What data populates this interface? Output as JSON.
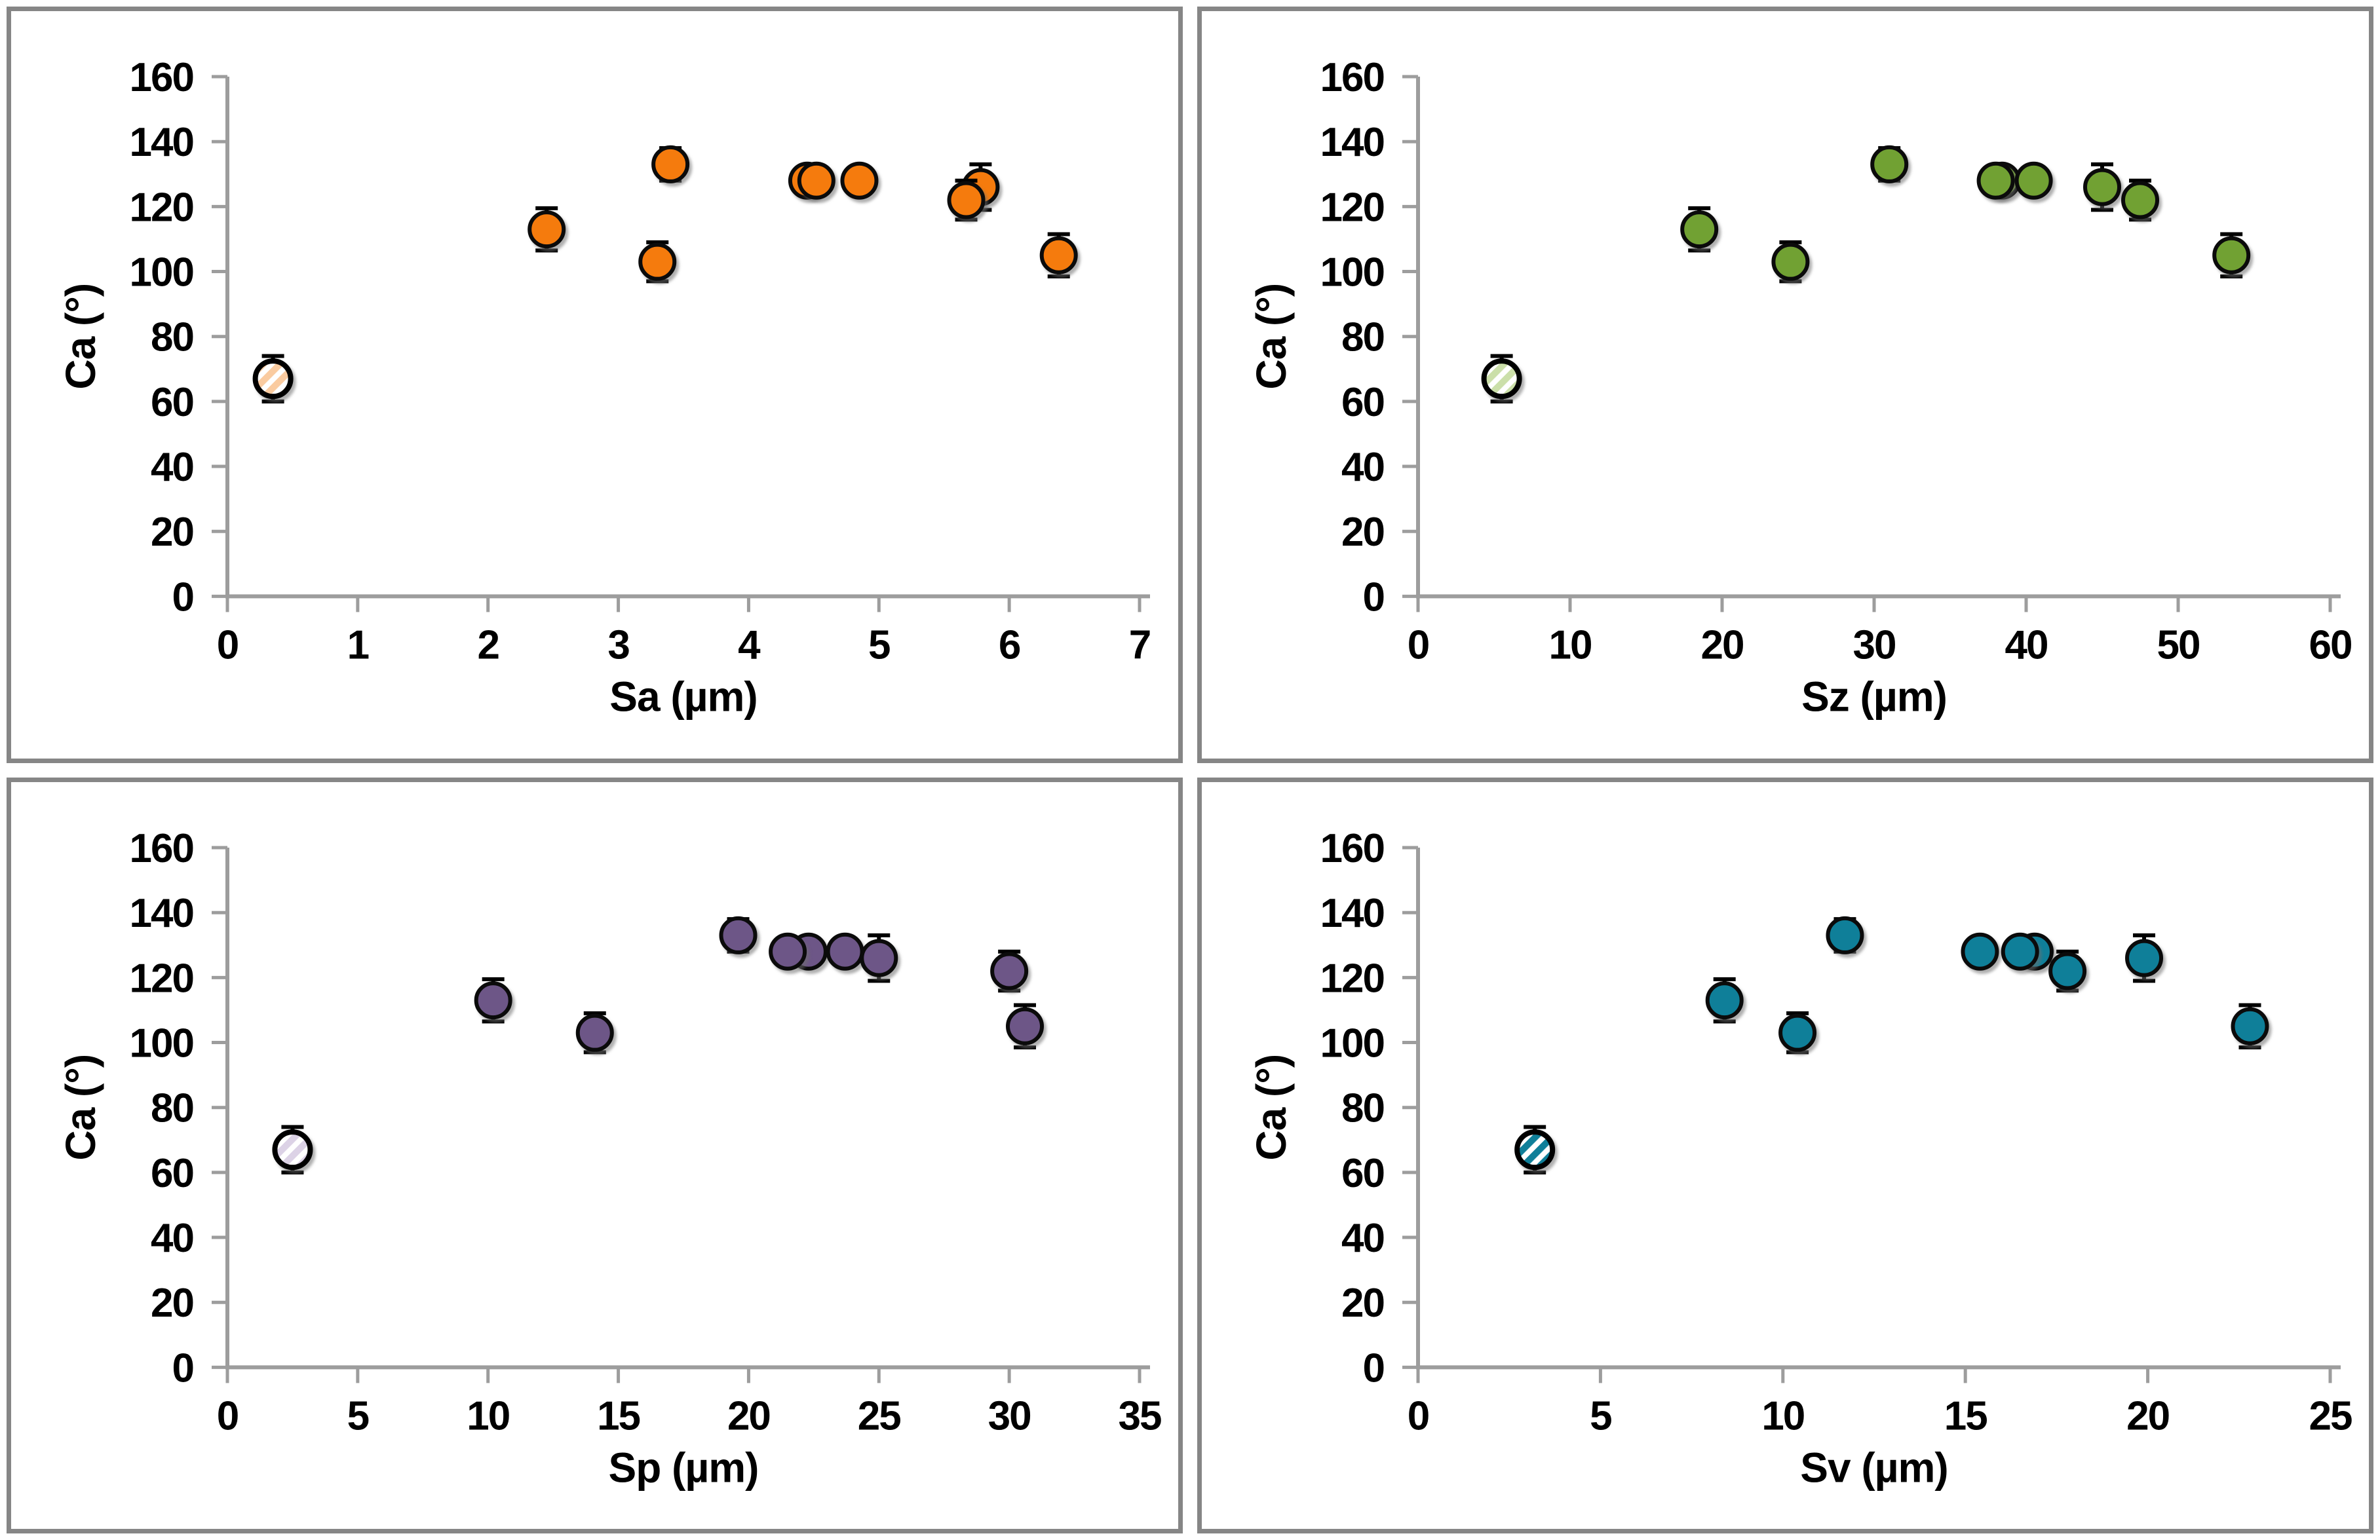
{
  "page": {
    "background_color": "#ffffff",
    "panel_border_color": "#868686",
    "axis_color": "#9D9D9D",
    "error_bar_color": "#000000",
    "marker_outline_color": "#0b0b0b",
    "text_color": "#000000"
  },
  "chart_data": [
    {
      "type": "scatter",
      "id": "sa",
      "title": "",
      "xlabel": "Sa (µm)",
      "ylabel": "Ca (°)",
      "xlim": [
        0,
        7
      ],
      "ylim": [
        0,
        160
      ],
      "xticks": [
        "0",
        "1",
        "2",
        "3",
        "4",
        "5",
        "6",
        "7"
      ],
      "yticks": [
        "0",
        "20",
        "40",
        "60",
        "80",
        "100",
        "120",
        "140",
        "160"
      ],
      "grid": "off",
      "legend": "none",
      "marker_color": "#F57B0D",
      "hatch_color": "#FACBA0",
      "points": [
        {
          "x": 0.35,
          "y": 67,
          "error": 7,
          "hatched": true
        },
        {
          "x": 2.45,
          "y": 113,
          "error": 6.5,
          "hatched": false
        },
        {
          "x": 3.3,
          "y": 103,
          "error": 6,
          "hatched": false
        },
        {
          "x": 3.4,
          "y": 133,
          "error": 5,
          "hatched": false
        },
        {
          "x": 4.45,
          "y": 128,
          "error": 4,
          "hatched": false
        },
        {
          "x": 4.52,
          "y": 128,
          "error": 4,
          "hatched": false
        },
        {
          "x": 4.85,
          "y": 128,
          "error": 4,
          "hatched": false
        },
        {
          "x": 5.78,
          "y": 126,
          "error": 7,
          "hatched": false
        },
        {
          "x": 5.67,
          "y": 122,
          "error": 6,
          "hatched": false
        },
        {
          "x": 6.38,
          "y": 105,
          "error": 6.5,
          "hatched": false
        }
      ]
    },
    {
      "type": "scatter",
      "id": "sz",
      "title": "",
      "xlabel": "Sz (µm)",
      "ylabel": "Ca (°)",
      "xlim": [
        0,
        60
      ],
      "ylim": [
        0,
        160
      ],
      "xticks": [
        "0",
        "10",
        "20",
        "30",
        "40",
        "50",
        "60"
      ],
      "yticks": [
        "0",
        "20",
        "40",
        "60",
        "80",
        "100",
        "120",
        "140",
        "160"
      ],
      "grid": "off",
      "legend": "none",
      "marker_color": "#71A133",
      "hatch_color": "#CBDFA9",
      "points": [
        {
          "x": 5.5,
          "y": 67,
          "error": 7,
          "hatched": true
        },
        {
          "x": 18.5,
          "y": 113,
          "error": 6.5,
          "hatched": false
        },
        {
          "x": 24.5,
          "y": 103,
          "error": 6,
          "hatched": false
        },
        {
          "x": 31.0,
          "y": 133,
          "error": 5,
          "hatched": false
        },
        {
          "x": 38.4,
          "y": 128,
          "error": 4,
          "hatched": false
        },
        {
          "x": 38.0,
          "y": 128,
          "error": 4,
          "hatched": false
        },
        {
          "x": 40.5,
          "y": 128,
          "error": 4,
          "hatched": false
        },
        {
          "x": 45.0,
          "y": 126,
          "error": 7,
          "hatched": false
        },
        {
          "x": 47.5,
          "y": 122,
          "error": 6,
          "hatched": false
        },
        {
          "x": 53.5,
          "y": 105,
          "error": 6.5,
          "hatched": false
        }
      ]
    },
    {
      "type": "scatter",
      "id": "sp",
      "title": "",
      "xlabel": "Sp (µm)",
      "ylabel": "Ca (°)",
      "xlim": [
        0,
        35
      ],
      "ylim": [
        0,
        160
      ],
      "xticks": [
        "0",
        "5",
        "10",
        "15",
        "20",
        "25",
        "30",
        "35"
      ],
      "yticks": [
        "0",
        "20",
        "40",
        "60",
        "80",
        "100",
        "120",
        "140",
        "160"
      ],
      "grid": "off",
      "legend": "none",
      "marker_color": "#6D5687",
      "hatch_color": "#DCD2E6",
      "points": [
        {
          "x": 2.5,
          "y": 67,
          "error": 7,
          "hatched": true
        },
        {
          "x": 10.2,
          "y": 113,
          "error": 6.5,
          "hatched": false
        },
        {
          "x": 14.1,
          "y": 103,
          "error": 6,
          "hatched": false
        },
        {
          "x": 19.6,
          "y": 133,
          "error": 5,
          "hatched": false
        },
        {
          "x": 22.3,
          "y": 128,
          "error": 4,
          "hatched": false
        },
        {
          "x": 21.5,
          "y": 128,
          "error": 4,
          "hatched": false
        },
        {
          "x": 23.7,
          "y": 128,
          "error": 4,
          "hatched": false
        },
        {
          "x": 25.0,
          "y": 126,
          "error": 7,
          "hatched": false
        },
        {
          "x": 30.0,
          "y": 122,
          "error": 6,
          "hatched": false
        },
        {
          "x": 30.6,
          "y": 105,
          "error": 6.5,
          "hatched": false
        }
      ]
    },
    {
      "type": "scatter",
      "id": "sv",
      "title": "",
      "xlabel": "Sv (µm)",
      "ylabel": "Ca (°)",
      "xlim": [
        0,
        25
      ],
      "ylim": [
        0,
        160
      ],
      "xticks": [
        "0",
        "5",
        "10",
        "15",
        "20",
        "25"
      ],
      "yticks": [
        "0",
        "20",
        "40",
        "60",
        "80",
        "100",
        "120",
        "140",
        "160"
      ],
      "grid": "off",
      "legend": "none",
      "marker_color": "#0F7F99",
      "hatch_color": "#0F7F99",
      "points": [
        {
          "x": 3.2,
          "y": 67,
          "error": 7,
          "hatched": true
        },
        {
          "x": 8.4,
          "y": 113,
          "error": 6.5,
          "hatched": false
        },
        {
          "x": 10.4,
          "y": 103,
          "error": 6,
          "hatched": false
        },
        {
          "x": 11.7,
          "y": 133,
          "error": 5,
          "hatched": false
        },
        {
          "x": 15.4,
          "y": 128,
          "error": 4,
          "hatched": false
        },
        {
          "x": 16.9,
          "y": 128,
          "error": 4,
          "hatched": false
        },
        {
          "x": 16.5,
          "y": 128,
          "error": 4,
          "hatched": false
        },
        {
          "x": 17.8,
          "y": 122,
          "error": 6,
          "hatched": false
        },
        {
          "x": 19.9,
          "y": 126,
          "error": 7,
          "hatched": false
        },
        {
          "x": 22.8,
          "y": 105,
          "error": 6.5,
          "hatched": false
        }
      ]
    }
  ]
}
